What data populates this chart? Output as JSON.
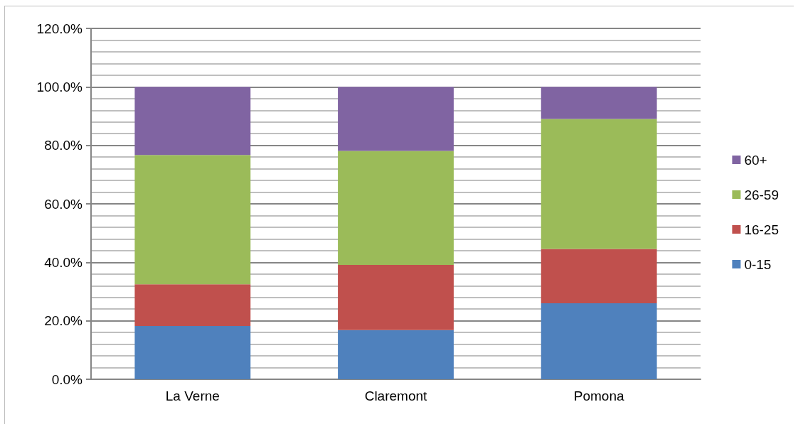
{
  "chart_data": {
    "type": "bar",
    "stacked": true,
    "categories": [
      "La Verne",
      "Claremont",
      "Pomona"
    ],
    "series": [
      {
        "name": "0-15",
        "color": "#4f81bd",
        "values": [
          18.2,
          16.8,
          26.0
        ]
      },
      {
        "name": "16-25",
        "color": "#c0504d",
        "values": [
          14.3,
          22.3,
          18.6
        ]
      },
      {
        "name": "26-59",
        "color": "#9bbb59",
        "values": [
          44.2,
          39.0,
          44.4
        ]
      },
      {
        "name": "60+",
        "color": "#8064a2",
        "values": [
          23.3,
          21.9,
          11.0
        ]
      }
    ],
    "ylim": [
      0,
      120
    ],
    "yticks": [
      {
        "value": 0,
        "label": "0.0%"
      },
      {
        "value": 20,
        "label": "20.0%"
      },
      {
        "value": 40,
        "label": "40.0%"
      },
      {
        "value": 60,
        "label": "60.0%"
      },
      {
        "value": 80,
        "label": "80.0%"
      },
      {
        "value": 100,
        "label": "100.0%"
      },
      {
        "value": 120,
        "label": "120.0%"
      }
    ],
    "grid": true,
    "legend": "right"
  }
}
